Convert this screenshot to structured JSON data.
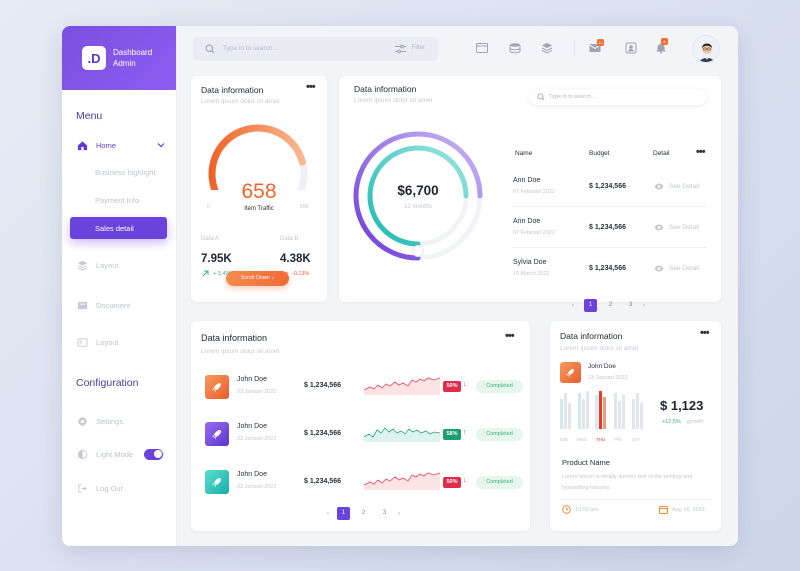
{
  "brand": {
    "initials": ".D",
    "line1": "Dashboard",
    "line2": "Admin"
  },
  "sidebar": {
    "menu_title": "Menu",
    "items": [
      {
        "label": "Home"
      },
      {
        "label": "Business highlight"
      },
      {
        "label": "Payment Info"
      },
      {
        "label": "Sales detail"
      },
      {
        "label": "Layout"
      },
      {
        "label": "Document"
      },
      {
        "label": "Layout"
      }
    ],
    "config_title": "Configuration",
    "config_items": [
      {
        "label": "Settings"
      },
      {
        "label": "Light Mode"
      },
      {
        "label": "Log Out"
      }
    ]
  },
  "topbar": {
    "search_placeholder": "Type in to search ...",
    "filter_label": "Filter",
    "mail_count": "12",
    "bell_count": "8"
  },
  "gauge_card": {
    "title": "Data information",
    "subtitle": "Lorem ipsum dolor sit amet",
    "value": "658",
    "label": "Item Traffic",
    "min": "0",
    "max": "800",
    "a_label": "Data A",
    "a_value": "7.95K",
    "a_change": "+ 3.49%",
    "b_label": "Data B",
    "b_value": "4.38K",
    "b_change": "-0.13%",
    "button": "Scroll Down",
    "gauge_fraction": 0.82
  },
  "donut_card": {
    "title": "Data information",
    "subtitle": "Lorem ipsum dolor sit amet",
    "value": "$6,700",
    "caption": "12 months",
    "search_placeholder": "Type in to search ...",
    "headers": {
      "name": "Name",
      "budget": "Budget",
      "detail": "Detail"
    },
    "rows": [
      {
        "name": "Ann Doe",
        "date": "07 Februari 2022",
        "budget": "$ 1,234,566",
        "link": "See Detail"
      },
      {
        "name": "Ann Doe",
        "date": "07 Februari 2022",
        "budget": "$ 1,234,566",
        "link": "See Detail"
      },
      {
        "name": "Sylvia Doe",
        "date": "15 March 2022",
        "budget": "$ 1,234,566",
        "link": "See Detail"
      }
    ],
    "pages": [
      "1",
      "2",
      "3"
    ]
  },
  "list_card": {
    "title": "Data information",
    "subtitle": "Lorem ipsum dolor sit amet",
    "rows": [
      {
        "name": "John Doe",
        "date": "23 Januari 2022",
        "amount": "$ 1,234,566",
        "pct": "50%",
        "status": "Completed"
      },
      {
        "name": "John Doe",
        "date": "23 Januari 2022",
        "amount": "$ 1,234,566",
        "pct": "58%",
        "status": "Completed"
      },
      {
        "name": "John Doe",
        "date": "23 Januari 2022",
        "amount": "$ 1,234,566",
        "pct": "50%",
        "status": "Completed"
      }
    ],
    "pages": [
      "1",
      "2",
      "3"
    ]
  },
  "product_card": {
    "title": "Data information",
    "subtitle": "Lorem ipsum dolor sit amet",
    "name": "John Doe",
    "date": "23 Januari 2022",
    "days": [
      "TUE",
      "WED",
      "THU",
      "FRI",
      "SAT"
    ],
    "value": "$ 1,123",
    "growth": "+12,5%",
    "growth_label": "growth",
    "product_title": "Product Name",
    "desc": "Lorem Ipsum is simply dummy text of the printing and typesetting industry.",
    "time": "10:00 am",
    "date2": "Aug 16, 2023"
  }
}
